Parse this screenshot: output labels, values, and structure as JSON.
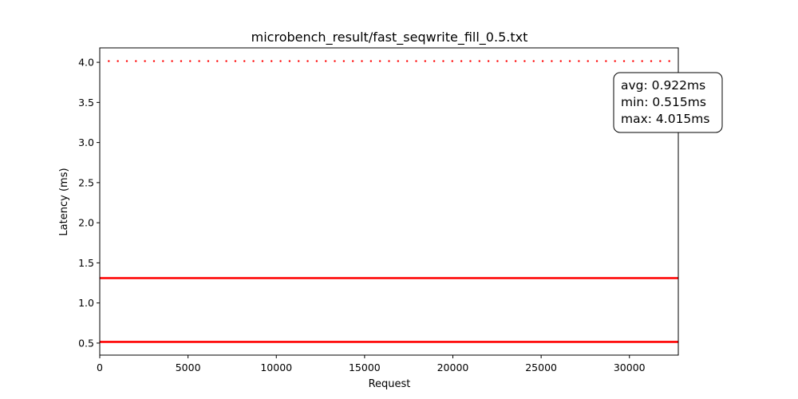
{
  "chart_data": {
    "type": "scatter",
    "title": "microbench_result/fast_seqwrite_fill_0.5.txt",
    "xlabel": "Request",
    "ylabel": "Latency (ms)",
    "xlim": [
      0,
      32768
    ],
    "ylim": [
      0.35,
      4.18
    ],
    "xticks": [
      0,
      5000,
      10000,
      15000,
      20000,
      25000,
      30000
    ],
    "xtick_labels": [
      "0",
      "5000",
      "10000",
      "15000",
      "20000",
      "25000",
      "30000"
    ],
    "yticks": [
      0.5,
      1.0,
      1.5,
      2.0,
      2.5,
      3.0,
      3.5,
      4.0
    ],
    "ytick_labels": [
      "0.5",
      "1.0",
      "1.5",
      "2.0",
      "2.5",
      "3.0",
      "3.5",
      "4.0"
    ],
    "grid": false,
    "color": "#ff0000",
    "series": [
      {
        "points": [
          [
            0,
            0.515
          ],
          [
            32768,
            0.515
          ]
        ],
        "style": "dense"
      },
      {
        "points": [
          [
            0,
            1.31
          ],
          [
            32768,
            1.31
          ]
        ],
        "style": "dense"
      },
      {
        "x_start": 512,
        "x_step": 512,
        "x_end": 32256,
        "y": 4.015,
        "style": "sparse"
      }
    ],
    "annotation": {
      "lines": [
        "avg: 0.922ms",
        "min: 0.515ms",
        "max: 4.015ms"
      ],
      "placement": "top-right"
    }
  }
}
